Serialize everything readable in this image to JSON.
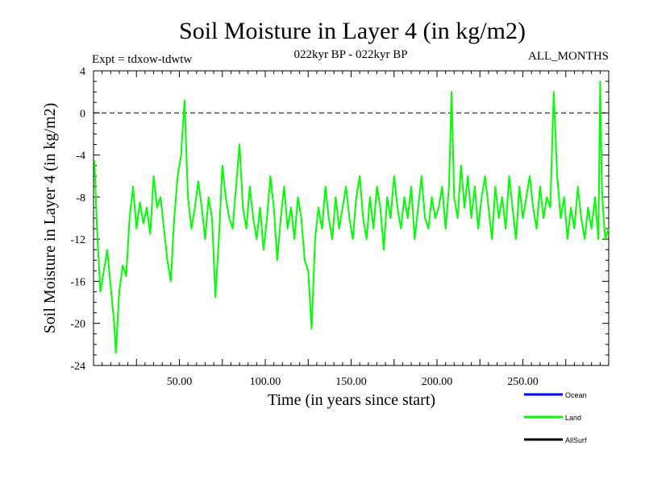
{
  "chart_data": {
    "type": "line",
    "title": "Soil Moisture in Layer 4 (in kg/m2)",
    "subtitle_left": "Expt = tdxow-tdwtw",
    "subtitle_center": "022kyr BP - 022kyr BP",
    "subtitle_right": "ALL_MONTHS",
    "xlabel": "Time (in years since start)",
    "ylabel": "Soil Moisture in Layer 4 (in kg/m2)",
    "xlim": [
      0,
      300
    ],
    "ylim": [
      -24,
      4
    ],
    "x_ticks": [
      50,
      100,
      150,
      200,
      250
    ],
    "x_tick_labels": [
      "50.00",
      "100.00",
      "150.00",
      "200.00",
      "250.00"
    ],
    "y_ticks": [
      4,
      0,
      -4,
      -8,
      -12,
      -16,
      -20,
      -24
    ],
    "y_tick_labels": [
      "4",
      "0",
      "-4",
      "-8",
      "-12",
      "-16",
      "-20",
      "-24"
    ],
    "reference_line": {
      "y": 0,
      "style": "dashed"
    },
    "legend_position": "bottom-right",
    "series": [
      {
        "name": "Ocean",
        "color": "#0000ff",
        "points": []
      },
      {
        "name": "Land",
        "color": "#00ff00",
        "points": [
          [
            0.5,
            -4.5
          ],
          [
            2,
            -11
          ],
          [
            4,
            -17
          ],
          [
            6,
            -15
          ],
          [
            8,
            -13
          ],
          [
            10,
            -16.5
          ],
          [
            12,
            -20
          ],
          [
            13,
            -22.8
          ],
          [
            15,
            -17
          ],
          [
            17,
            -14.5
          ],
          [
            19,
            -15.5
          ],
          [
            21,
            -10
          ],
          [
            23,
            -7
          ],
          [
            25,
            -11
          ],
          [
            27,
            -8.5
          ],
          [
            29,
            -10.5
          ],
          [
            31,
            -9
          ],
          [
            33,
            -11.5
          ],
          [
            35,
            -6
          ],
          [
            37,
            -9
          ],
          [
            39,
            -8
          ],
          [
            41,
            -11
          ],
          [
            43,
            -14
          ],
          [
            45,
            -16
          ],
          [
            47,
            -10
          ],
          [
            49,
            -6
          ],
          [
            51,
            -4
          ],
          [
            53,
            1.2
          ],
          [
            55,
            -8
          ],
          [
            57,
            -11
          ],
          [
            59,
            -9
          ],
          [
            61,
            -6.5
          ],
          [
            63,
            -9
          ],
          [
            65,
            -12
          ],
          [
            67,
            -8
          ],
          [
            69,
            -10
          ],
          [
            71,
            -17.5
          ],
          [
            73,
            -12
          ],
          [
            75,
            -5
          ],
          [
            77,
            -8
          ],
          [
            79,
            -10
          ],
          [
            81,
            -11
          ],
          [
            83,
            -7
          ],
          [
            85,
            -3
          ],
          [
            87,
            -9
          ],
          [
            89,
            -11
          ],
          [
            91,
            -7
          ],
          [
            93,
            -10
          ],
          [
            95,
            -12
          ],
          [
            97,
            -9
          ],
          [
            99,
            -13
          ],
          [
            101,
            -10
          ],
          [
            103,
            -6
          ],
          [
            105,
            -9
          ],
          [
            107,
            -14
          ],
          [
            109,
            -10
          ],
          [
            111,
            -7
          ],
          [
            113,
            -11
          ],
          [
            115,
            -9
          ],
          [
            117,
            -12
          ],
          [
            119,
            -8
          ],
          [
            121,
            -10
          ],
          [
            123,
            -14
          ],
          [
            125,
            -15
          ],
          [
            127,
            -20.5
          ],
          [
            129,
            -12
          ],
          [
            131,
            -9
          ],
          [
            133,
            -11
          ],
          [
            135,
            -7
          ],
          [
            137,
            -10
          ],
          [
            139,
            -12
          ],
          [
            141,
            -8
          ],
          [
            143,
            -11
          ],
          [
            145,
            -9
          ],
          [
            147,
            -7
          ],
          [
            149,
            -10
          ],
          [
            151,
            -12
          ],
          [
            153,
            -8
          ],
          [
            155,
            -6
          ],
          [
            157,
            -10
          ],
          [
            159,
            -12
          ],
          [
            161,
            -8
          ],
          [
            163,
            -11
          ],
          [
            165,
            -7
          ],
          [
            167,
            -9
          ],
          [
            169,
            -13
          ],
          [
            171,
            -8
          ],
          [
            173,
            -10
          ],
          [
            175,
            -6
          ],
          [
            177,
            -9
          ],
          [
            179,
            -11
          ],
          [
            181,
            -8
          ],
          [
            183,
            -10
          ],
          [
            185,
            -7
          ],
          [
            187,
            -12
          ],
          [
            189,
            -9
          ],
          [
            191,
            -6
          ],
          [
            193,
            -10
          ],
          [
            195,
            -11
          ],
          [
            197,
            -8
          ],
          [
            199,
            -10
          ],
          [
            201,
            -9
          ],
          [
            203,
            -7
          ],
          [
            205,
            -11
          ],
          [
            207,
            -7
          ],
          [
            208.5,
            2
          ],
          [
            210,
            -8
          ],
          [
            212,
            -10
          ],
          [
            214,
            -5
          ],
          [
            216,
            -9
          ],
          [
            218,
            -6
          ],
          [
            220,
            -10
          ],
          [
            222,
            -7
          ],
          [
            224,
            -11
          ],
          [
            226,
            -8
          ],
          [
            228,
            -6
          ],
          [
            230,
            -9
          ],
          [
            232,
            -12
          ],
          [
            234,
            -7
          ],
          [
            236,
            -10
          ],
          [
            238,
            -8
          ],
          [
            240,
            -11
          ],
          [
            242,
            -6
          ],
          [
            244,
            -9
          ],
          [
            246,
            -12
          ],
          [
            248,
            -7
          ],
          [
            250,
            -10
          ],
          [
            252,
            -8
          ],
          [
            254,
            -6
          ],
          [
            256,
            -9
          ],
          [
            258,
            -11
          ],
          [
            260,
            -7
          ],
          [
            262,
            -10
          ],
          [
            264,
            -8
          ],
          [
            266,
            -9
          ],
          [
            268,
            2
          ],
          [
            270,
            -6
          ],
          [
            272,
            -10
          ],
          [
            274,
            -8
          ],
          [
            276,
            -12
          ],
          [
            278,
            -9
          ],
          [
            280,
            -11
          ],
          [
            282,
            -7
          ],
          [
            284,
            -10
          ],
          [
            286,
            -12
          ],
          [
            288,
            -9
          ],
          [
            290,
            -11
          ],
          [
            292,
            -8
          ],
          [
            294,
            -12
          ],
          [
            295,
            3
          ],
          [
            296,
            -7
          ],
          [
            297,
            -10
          ],
          [
            298,
            -12
          ],
          [
            300,
            -11
          ]
        ]
      },
      {
        "name": "AllSurf",
        "color": "#000000",
        "points": []
      }
    ]
  }
}
